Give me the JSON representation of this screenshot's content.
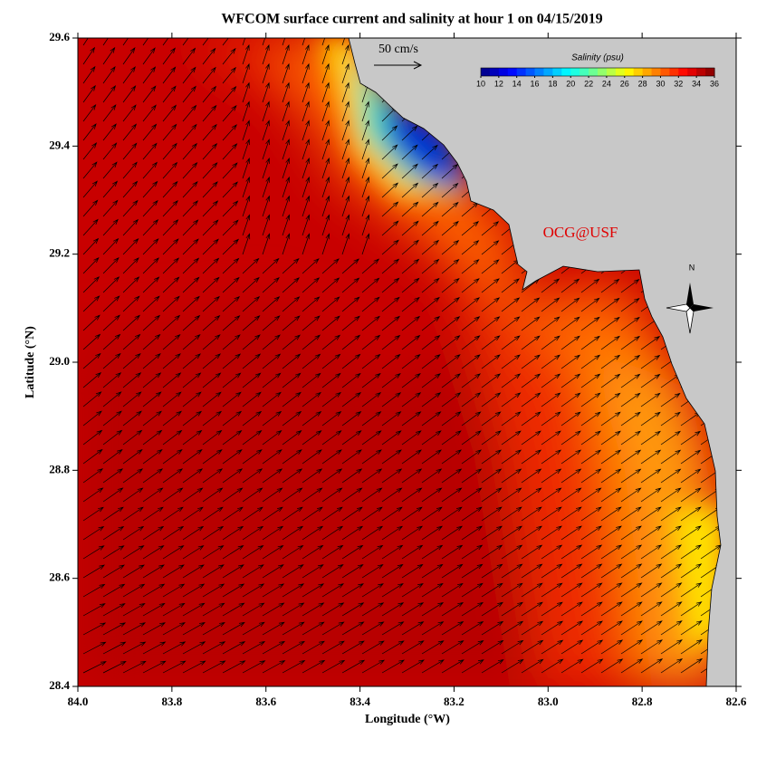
{
  "title": "WFCOM surface current and salinity at hour 1 on 04/15/2019",
  "x_axis": {
    "label": "Longitude (°W)",
    "lim": [
      84.0,
      82.6
    ],
    "ticks": [
      {
        "value": 84.0,
        "label": "84.0"
      },
      {
        "value": 83.8,
        "label": "83.8"
      },
      {
        "value": 83.6,
        "label": "83.6"
      },
      {
        "value": 83.4,
        "label": "83.4"
      },
      {
        "value": 83.2,
        "label": "83.2"
      },
      {
        "value": 83.0,
        "label": "83.0"
      },
      {
        "value": 82.8,
        "label": "82.8"
      },
      {
        "value": 82.6,
        "label": "82.6"
      }
    ]
  },
  "y_axis": {
    "label": "Latitude (°N)",
    "lim": [
      28.4,
      29.6
    ],
    "ticks": [
      {
        "value": 28.4,
        "label": "28.4"
      },
      {
        "value": 28.6,
        "label": "28.6"
      },
      {
        "value": 28.8,
        "label": "28.8"
      },
      {
        "value": 29.0,
        "label": "29.0"
      },
      {
        "value": 29.2,
        "label": "29.2"
      },
      {
        "value": 29.4,
        "label": "29.4"
      },
      {
        "value": 29.6,
        "label": "29.6"
      }
    ]
  },
  "colorbar": {
    "label": "Salinity (psu)",
    "lim": [
      10,
      36
    ],
    "ticks": [
      10,
      12,
      14,
      16,
      18,
      20,
      22,
      24,
      26,
      28,
      30,
      32,
      34,
      36
    ]
  },
  "scale_arrow": {
    "label": "50 cm/s"
  },
  "credit": "OCG@USF",
  "compass": "N"
}
